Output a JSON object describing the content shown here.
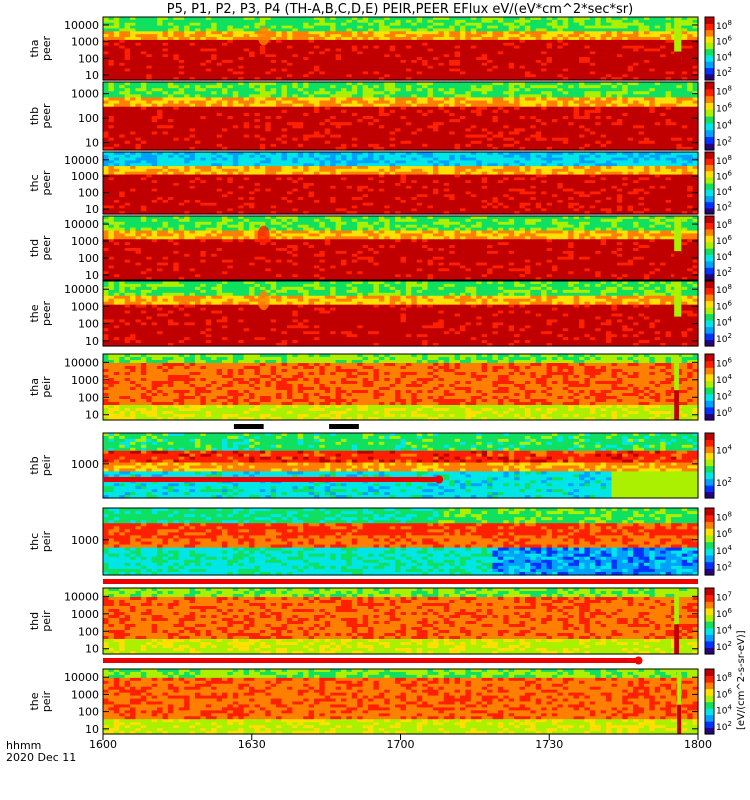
{
  "title": "P5, P1, P2, P3, P4 (TH-A,B,C,D,E) PEIR,PEER EFlux eV/(eV*cm^2*sec*sr)",
  "colors": {
    "palette": [
      "#28007a",
      "#0033ff",
      "#00a0ff",
      "#00e6e6",
      "#10e060",
      "#aaf000",
      "#ffe000",
      "#ff8000",
      "#ff2000",
      "#c00000"
    ],
    "background": "#ffffff",
    "red_bar": "#ee0000"
  },
  "footer": {
    "time_label": "hhmm",
    "date_label": "2020 Dec 11"
  },
  "colorbar_units": "[eV/(cm^2-s-sr-eV)]",
  "chart_data": {
    "type": "heatmap",
    "x_ticks": [
      "1600",
      "1630",
      "1700",
      "1730",
      "1800"
    ],
    "x_range": [
      "16:00",
      "18:00"
    ],
    "y_scale": "log",
    "panels": [
      {
        "label": "tha peer",
        "lines": [
          "tha",
          "peer"
        ],
        "y_ticks": [
          "10",
          "100",
          "1000",
          "10000"
        ],
        "y_range": [
          5,
          30000
        ],
        "cbar": [
          "10^2",
          "10^4",
          "10^6",
          "10^8"
        ],
        "kind": "peer",
        "event": [
          0.96,
          0.012
        ],
        "events": [
          [
            0.27,
            0.7
          ]
        ]
      },
      {
        "label": "thb peer",
        "lines": [
          "thb",
          "peer"
        ],
        "y_ticks": [
          "10",
          "100",
          "1000"
        ],
        "y_range": [
          5,
          3000
        ],
        "cbar": [
          "10^2",
          "10^4",
          "10^6",
          "10^8"
        ],
        "kind": "peer",
        "event": null,
        "events": []
      },
      {
        "label": "thc peer",
        "lines": [
          "thc",
          "peer"
        ],
        "y_ticks": [
          "10",
          "100",
          "1000",
          "10000"
        ],
        "y_range": [
          5,
          30000
        ],
        "cbar": [
          "10^2",
          "10^4",
          "10^6",
          "10^8"
        ],
        "kind": "peer_c",
        "event": null,
        "events": []
      },
      {
        "label": "thd peer",
        "lines": [
          "thd",
          "peer"
        ],
        "y_ticks": [
          "10",
          "100",
          "1000",
          "10000"
        ],
        "y_range": [
          5,
          30000
        ],
        "cbar": [
          "10^2",
          "10^4",
          "10^6",
          "10^8"
        ],
        "kind": "peer",
        "event": [
          0.96,
          0.012
        ],
        "events": [
          [
            0.27,
            0.8
          ]
        ]
      },
      {
        "label": "the peer",
        "lines": [
          "the",
          "peer"
        ],
        "y_ticks": [
          "10",
          "100",
          "1000",
          "10000"
        ],
        "y_range": [
          5,
          30000
        ],
        "cbar": [
          "10^2",
          "10^4",
          "10^6",
          "10^8"
        ],
        "kind": "peer",
        "event": [
          0.96,
          0.012
        ],
        "events": [
          [
            0.27,
            0.7
          ]
        ]
      },
      {
        "label": "tha peir",
        "lines": [
          "tha",
          "peir"
        ],
        "y_ticks": [
          "10",
          "100",
          "1000",
          "10000"
        ],
        "y_range": [
          5,
          30000
        ],
        "cbar": [
          "10^0",
          "10^2",
          "10^4",
          "10^6"
        ],
        "kind": "peir",
        "event": [
          0.96,
          0.008
        ],
        "events": []
      },
      {
        "label": "thb peir",
        "lines": [
          "thb",
          "peir"
        ],
        "y_ticks": [
          "1000"
        ],
        "y_range": [
          100,
          8000
        ],
        "cbar": [
          "10^2",
          "10^4"
        ],
        "kind": "peir_b",
        "event": null,
        "events": []
      },
      {
        "label": "thc peir",
        "lines": [
          "thc",
          "peir"
        ],
        "y_ticks": [
          "1000"
        ],
        "y_range": [
          100,
          8000
        ],
        "cbar": [
          "10^2",
          "10^4",
          "10^6",
          "10^8"
        ],
        "kind": "peir_c",
        "event": null,
        "events": []
      },
      {
        "label": "thd peir",
        "lines": [
          "thd",
          "peir"
        ],
        "y_ticks": [
          "10",
          "100",
          "1000",
          "10000"
        ],
        "y_range": [
          5,
          30000
        ],
        "cbar": [
          "10^2",
          "10^4",
          "10^6",
          "10^7"
        ],
        "kind": "peir",
        "event": [
          0.96,
          0.008
        ],
        "events": []
      },
      {
        "label": "the peir",
        "lines": [
          "the",
          "peir"
        ],
        "y_ticks": [
          "10",
          "100",
          "1000",
          "10000"
        ],
        "y_range": [
          5,
          30000
        ],
        "cbar": [
          "10^2",
          "10^4",
          "10^6",
          "10^8"
        ],
        "kind": "peir",
        "event": [
          0.965,
          0.006
        ],
        "events": []
      }
    ],
    "availability_bars": [
      {
        "after_panel": 5,
        "kind": "black",
        "segments": [
          [
            0.22,
            0.27
          ],
          [
            0.38,
            0.43
          ]
        ]
      },
      {
        "after_panel": 6,
        "kind": "red",
        "end": 0.565
      },
      {
        "after_panel": 7,
        "kind": "red",
        "end": 1.0
      },
      {
        "after_panel": 8,
        "kind": "red",
        "end": 0.9
      }
    ]
  }
}
